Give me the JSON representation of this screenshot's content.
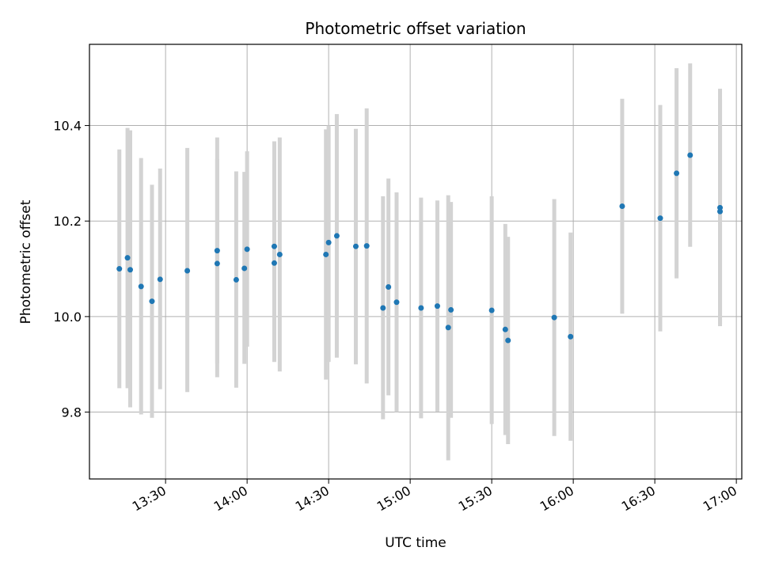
{
  "chart_data": {
    "type": "scatter",
    "title": "Photometric offset variation",
    "xlabel": "UTC time",
    "ylabel": "Photometric offset",
    "x_ticks": [
      "13:30",
      "14:00",
      "14:30",
      "15:00",
      "15:30",
      "16:00",
      "16:30",
      "17:00"
    ],
    "y_ticks": [
      "9.8",
      "10.0",
      "10.2",
      "10.4"
    ],
    "xlim": [
      "13:02",
      "17:02"
    ],
    "ylim": [
      9.66,
      10.57
    ],
    "grid": true,
    "colors": {
      "point": "#1f77b4",
      "errorbar": "#d3d3d3",
      "grid": "#b0b0b0"
    },
    "points": [
      {
        "x": "13:13",
        "y": 10.1,
        "yerr_low": 9.85,
        "yerr_high": 10.35
      },
      {
        "x": "13:16",
        "y": 10.123,
        "yerr_low": 9.85,
        "yerr_high": 10.395
      },
      {
        "x": "13:17",
        "y": 10.098,
        "yerr_low": 9.81,
        "yerr_high": 10.39
      },
      {
        "x": "13:21",
        "y": 10.063,
        "yerr_low": 9.795,
        "yerr_high": 10.332
      },
      {
        "x": "13:25",
        "y": 10.032,
        "yerr_low": 9.788,
        "yerr_high": 10.276
      },
      {
        "x": "13:28",
        "y": 10.078,
        "yerr_low": 9.848,
        "yerr_high": 10.31
      },
      {
        "x": "13:38",
        "y": 10.096,
        "yerr_low": 9.842,
        "yerr_high": 10.353
      },
      {
        "x": "13:49",
        "y": 10.111,
        "yerr_low": 9.902,
        "yerr_high": 10.33
      },
      {
        "x": "13:49",
        "y": 10.138,
        "yerr_low": 9.873,
        "yerr_high": 10.375
      },
      {
        "x": "13:56",
        "y": 10.077,
        "yerr_low": 9.851,
        "yerr_high": 10.304
      },
      {
        "x": "13:59",
        "y": 10.101,
        "yerr_low": 9.901,
        "yerr_high": 10.303
      },
      {
        "x": "14:00",
        "y": 10.141,
        "yerr_low": 9.937,
        "yerr_high": 10.346
      },
      {
        "x": "14:10",
        "y": 10.147,
        "yerr_low": 9.928,
        "yerr_high": 10.367
      },
      {
        "x": "14:10",
        "y": 10.112,
        "yerr_low": 9.905,
        "yerr_high": 10.32
      },
      {
        "x": "14:12",
        "y": 10.13,
        "yerr_low": 9.885,
        "yerr_high": 10.375
      },
      {
        "x": "14:29",
        "y": 10.13,
        "yerr_low": 9.868,
        "yerr_high": 10.392
      },
      {
        "x": "14:30",
        "y": 10.155,
        "yerr_low": 9.905,
        "yerr_high": 10.4
      },
      {
        "x": "14:33",
        "y": 10.169,
        "yerr_low": 9.914,
        "yerr_high": 10.424
      },
      {
        "x": "14:40",
        "y": 10.147,
        "yerr_low": 9.9,
        "yerr_high": 10.393
      },
      {
        "x": "14:44",
        "y": 10.148,
        "yerr_low": 9.86,
        "yerr_high": 10.436
      },
      {
        "x": "14:50",
        "y": 10.018,
        "yerr_low": 9.785,
        "yerr_high": 10.252
      },
      {
        "x": "14:52",
        "y": 10.062,
        "yerr_low": 9.835,
        "yerr_high": 10.289
      },
      {
        "x": "14:55",
        "y": 10.03,
        "yerr_low": 9.8,
        "yerr_high": 10.26
      },
      {
        "x": "15:04",
        "y": 10.018,
        "yerr_low": 9.787,
        "yerr_high": 10.249
      },
      {
        "x": "15:10",
        "y": 10.022,
        "yerr_low": 9.801,
        "yerr_high": 10.243
      },
      {
        "x": "15:14",
        "y": 9.977,
        "yerr_low": 9.699,
        "yerr_high": 10.254
      },
      {
        "x": "15:15",
        "y": 10.014,
        "yerr_low": 9.788,
        "yerr_high": 10.24
      },
      {
        "x": "15:30",
        "y": 10.013,
        "yerr_low": 9.775,
        "yerr_high": 10.252
      },
      {
        "x": "15:35",
        "y": 9.973,
        "yerr_low": 9.752,
        "yerr_high": 10.194
      },
      {
        "x": "15:36",
        "y": 9.95,
        "yerr_low": 9.733,
        "yerr_high": 10.167
      },
      {
        "x": "15:53",
        "y": 9.998,
        "yerr_low": 9.75,
        "yerr_high": 10.246
      },
      {
        "x": "15:59",
        "y": 9.958,
        "yerr_low": 9.74,
        "yerr_high": 10.176
      },
      {
        "x": "16:18",
        "y": 10.231,
        "yerr_low": 10.006,
        "yerr_high": 10.456
      },
      {
        "x": "16:32",
        "y": 10.206,
        "yerr_low": 9.969,
        "yerr_high": 10.443
      },
      {
        "x": "16:38",
        "y": 10.3,
        "yerr_low": 10.08,
        "yerr_high": 10.52
      },
      {
        "x": "16:43",
        "y": 10.338,
        "yerr_low": 10.146,
        "yerr_high": 10.53
      },
      {
        "x": "16:54",
        "y": 10.228,
        "yerr_low": 9.98,
        "yerr_high": 10.477
      },
      {
        "x": "16:54",
        "y": 10.22,
        "yerr_low": 9.985,
        "yerr_high": 10.455
      }
    ]
  }
}
